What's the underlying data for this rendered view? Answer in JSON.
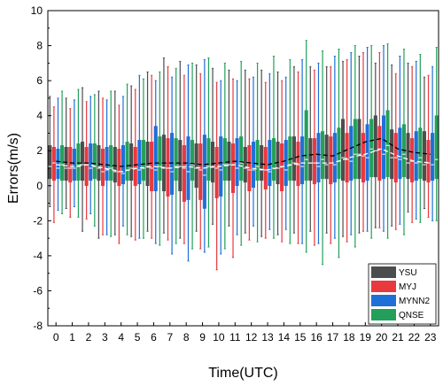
{
  "chart_data": {
    "type": "box",
    "xlabel": "Time(UTC)",
    "ylabel": "Errors(m/s)",
    "ylim": [
      -8,
      10
    ],
    "yticks": [
      -8,
      -6,
      -4,
      -2,
      0,
      2,
      4,
      6,
      8,
      10
    ],
    "categories": [
      "0",
      "1",
      "2",
      "3",
      "4",
      "5",
      "6",
      "7",
      "8",
      "9",
      "10",
      "11",
      "12",
      "13",
      "14",
      "15",
      "16",
      "17",
      "18",
      "19",
      "20",
      "21",
      "22",
      "23"
    ],
    "legend_position": "bottom-right",
    "grid": false,
    "series": [
      {
        "name": "YSU",
        "color": "#4d4d4d",
        "whisker_low": [
          -1.2,
          -1.3,
          -2.6,
          -3.0,
          -2.8,
          -2.9,
          -2.6,
          -2.7,
          -3.0,
          -2.6,
          -2.2,
          -2.3,
          -2.7,
          -2.9,
          -2.8,
          -2.7,
          -2.6,
          -2.7,
          -2.9,
          -2.7,
          -2.4,
          -2.3,
          -1.5,
          -1.3
        ],
        "q1": [
          0.4,
          0.3,
          0.3,
          0.3,
          0.2,
          0.3,
          0.0,
          -0.3,
          -0.3,
          -0.1,
          0.2,
          0.3,
          0.2,
          0.3,
          0.1,
          0.3,
          0.3,
          0.4,
          0.3,
          0.4,
          0.5,
          0.4,
          0.4,
          0.3
        ],
        "median": [
          1.1,
          1.0,
          1.2,
          1.0,
          0.8,
          1.0,
          1.1,
          1.0,
          1.1,
          1.0,
          1.1,
          1.2,
          1.0,
          0.9,
          1.0,
          1.3,
          1.3,
          1.2,
          1.6,
          1.8,
          2.0,
          1.6,
          1.3,
          1.2
        ],
        "q3": [
          2.3,
          2.2,
          2.5,
          2.3,
          2.2,
          2.4,
          2.5,
          2.9,
          2.6,
          2.4,
          2.5,
          2.5,
          2.2,
          2.3,
          2.5,
          2.8,
          2.7,
          2.9,
          3.8,
          3.8,
          4.0,
          3.2,
          3.0,
          3.1
        ],
        "whisker_high": [
          5.1,
          5.0,
          5.6,
          5.4,
          5.4,
          5.7,
          6.5,
          7.3,
          7.1,
          6.9,
          6.7,
          6.6,
          6.6,
          6.6,
          6.5,
          6.8,
          6.8,
          6.8,
          7.1,
          7.4,
          7.0,
          6.9,
          7.0,
          6.2
        ]
      },
      {
        "name": "MYJ",
        "color": "#e8393f",
        "whisker_low": [
          -2.1,
          -1.8,
          -1.9,
          -2.8,
          -3.3,
          -3.1,
          -3.0,
          -3.1,
          -3.3,
          -3.6,
          -4.8,
          -4.1,
          -3.1,
          -3.0,
          -3.2,
          -3.3,
          -3.4,
          -3.3,
          -3.2,
          -2.6,
          -2.4,
          -2.5,
          -2.1,
          -1.8
        ],
        "q1": [
          0.3,
          0.2,
          0.0,
          0.0,
          0.0,
          0.0,
          -0.3,
          -0.6,
          -0.9,
          -0.8,
          -0.7,
          -0.4,
          -0.3,
          -0.2,
          -0.3,
          0.0,
          0.1,
          0.1,
          0.2,
          0.2,
          0.3,
          0.2,
          0.2,
          0.2
        ],
        "median": [
          1.3,
          1.0,
          1.2,
          0.8,
          0.8,
          1.0,
          1.0,
          1.0,
          1.0,
          0.9,
          1.0,
          1.2,
          0.9,
          0.9,
          1.1,
          1.2,
          1.3,
          1.3,
          1.5,
          1.7,
          2.1,
          1.6,
          1.4,
          1.3
        ],
        "q3": [
          2.2,
          2.2,
          2.2,
          2.1,
          2.1,
          2.2,
          2.5,
          2.7,
          2.3,
          2.4,
          2.2,
          2.4,
          2.3,
          2.2,
          2.4,
          2.5,
          2.7,
          2.8,
          3.0,
          3.0,
          3.4,
          3.0,
          2.7,
          2.6
        ],
        "whisker_high": [
          4.5,
          4.4,
          4.8,
          5.0,
          4.6,
          5.5,
          6.3,
          6.8,
          6.3,
          6.4,
          5.9,
          6.1,
          6.1,
          5.9,
          6.0,
          6.5,
          6.6,
          6.8,
          7.2,
          7.6,
          7.6,
          6.4,
          6.8,
          6.3
        ]
      },
      {
        "name": "MYNN2",
        "color": "#1f6fd8",
        "whisker_low": [
          -1.4,
          -1.2,
          -1.6,
          -2.8,
          -2.3,
          -3.0,
          -3.3,
          -3.9,
          -4.3,
          -3.8,
          -3.9,
          -2.8,
          -2.3,
          -2.5,
          -2.5,
          -3.3,
          -3.3,
          -3.0,
          -2.8,
          -2.6,
          -2.6,
          -2.2,
          -1.9,
          -2.0
        ],
        "q1": [
          0.4,
          0.3,
          0.3,
          0.3,
          0.1,
          0.1,
          -0.3,
          -0.5,
          -0.8,
          -1.3,
          -0.6,
          0.0,
          -0.1,
          0.0,
          0.0,
          0.1,
          0.2,
          0.2,
          0.3,
          0.3,
          0.4,
          0.4,
          0.3,
          0.3
        ],
        "median": [
          1.0,
          1.0,
          1.0,
          0.9,
          0.7,
          0.9,
          0.9,
          0.8,
          0.8,
          0.6,
          0.9,
          1.0,
          0.9,
          0.8,
          0.9,
          1.1,
          1.1,
          1.2,
          1.4,
          1.6,
          1.8,
          1.5,
          1.3,
          1.2
        ],
        "q3": [
          2.1,
          2.1,
          2.4,
          2.2,
          2.3,
          2.6,
          3.4,
          3.0,
          2.8,
          2.9,
          2.8,
          2.7,
          2.5,
          2.6,
          2.6,
          2.8,
          3.0,
          3.0,
          3.4,
          3.5,
          4.0,
          3.3,
          3.1,
          3.0
        ],
        "whisker_high": [
          5.0,
          4.9,
          5.1,
          4.9,
          5.1,
          6.3,
          6.0,
          6.2,
          6.9,
          7.2,
          6.0,
          6.0,
          6.2,
          6.4,
          6.2,
          7.2,
          7.0,
          7.4,
          7.6,
          7.9,
          8.0,
          7.4,
          7.1,
          6.8
        ]
      },
      {
        "name": "QNSE",
        "color": "#22a05a",
        "whisker_low": [
          -1.6,
          -1.8,
          -2.3,
          -2.9,
          -2.8,
          -3.0,
          -3.4,
          -3.3,
          -3.6,
          -3.5,
          -3.6,
          -3.4,
          -3.2,
          -3.0,
          -3.3,
          -3.8,
          -4.5,
          -4.1,
          -3.5,
          -3.0,
          -3.0,
          -2.8,
          -2.1,
          -2.0
        ],
        "q1": [
          0.3,
          0.3,
          0.4,
          0.3,
          0.3,
          0.3,
          0.3,
          0.3,
          0.3,
          0.3,
          0.3,
          0.3,
          0.3,
          0.3,
          0.3,
          0.3,
          0.4,
          0.4,
          0.4,
          0.5,
          0.5,
          0.5,
          0.4,
          0.4
        ],
        "median": [
          1.2,
          1.1,
          1.1,
          1.0,
          0.9,
          1.0,
          1.1,
          1.1,
          1.2,
          1.1,
          1.2,
          1.3,
          1.1,
          1.0,
          1.2,
          1.5,
          1.5,
          1.4,
          1.8,
          2.1,
          2.3,
          1.8,
          1.6,
          1.5
        ],
        "q3": [
          2.3,
          2.4,
          2.4,
          2.3,
          2.5,
          2.6,
          2.8,
          2.7,
          2.6,
          2.7,
          2.7,
          2.8,
          2.6,
          2.7,
          2.8,
          4.3,
          3.1,
          3.3,
          3.8,
          3.8,
          4.3,
          3.5,
          3.3,
          4.0
        ],
        "whisker_high": [
          5.4,
          5.5,
          5.2,
          5.4,
          5.8,
          6.1,
          6.5,
          6.7,
          7.0,
          7.3,
          7.0,
          7.1,
          7.0,
          7.4,
          7.2,
          8.3,
          7.7,
          7.8,
          8.0,
          8.0,
          8.1,
          7.8,
          7.5,
          7.9
        ]
      }
    ],
    "mean_lines": [
      {
        "color": "#ffffff",
        "values": [
          1.2,
          1.1,
          1.2,
          1.0,
          0.8,
          1.0,
          1.1,
          1.0,
          1.1,
          1.0,
          1.1,
          1.2,
          1.0,
          0.9,
          1.1,
          1.3,
          1.3,
          1.3,
          1.6,
          1.8,
          2.1,
          1.7,
          1.4,
          1.3
        ]
      },
      {
        "color": "#000000",
        "values": [
          1.4,
          1.3,
          1.3,
          1.2,
          1.1,
          1.2,
          1.3,
          1.3,
          1.3,
          1.2,
          1.3,
          1.4,
          1.3,
          1.2,
          1.4,
          1.7,
          1.8,
          1.7,
          2.1,
          2.5,
          2.7,
          2.1,
          1.9,
          1.8
        ]
      }
    ]
  }
}
